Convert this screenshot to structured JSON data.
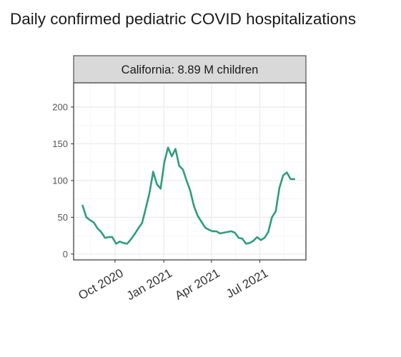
{
  "title": "Daily confirmed pediatric COVID hospitalizations",
  "colors": {
    "line": "#2e9e77",
    "strip_bg": "#d9d9d9",
    "grid": "#ebebeb",
    "border": "#333333"
  },
  "chart_data": {
    "type": "line",
    "title": "Daily confirmed pediatric COVID hospitalizations",
    "facet_label": "California: 8.89 M children",
    "xlabel": "",
    "ylabel": "",
    "ylim": [
      -8,
      233
    ],
    "xlim": [
      "2020-07-15",
      "2021-09-26"
    ],
    "grid": true,
    "y_ticks": [
      0,
      50,
      100,
      150,
      200
    ],
    "x_ticks": [
      {
        "date": "2020-10-01",
        "label": "Oct 2020"
      },
      {
        "date": "2021-01-01",
        "label": "Jan 2021"
      },
      {
        "date": "2021-04-01",
        "label": "Apr 2021"
      },
      {
        "date": "2021-07-01",
        "label": "Jul 2021"
      }
    ],
    "series": [
      {
        "x": [
          "2020-08-01",
          "2020-08-08",
          "2020-08-15",
          "2020-08-22",
          "2020-08-29",
          "2020-09-05",
          "2020-09-12",
          "2020-09-19",
          "2020-09-26",
          "2020-10-03",
          "2020-10-10",
          "2020-10-17",
          "2020-10-24",
          "2020-10-31",
          "2020-11-07",
          "2020-11-14",
          "2020-11-21",
          "2020-11-28",
          "2020-12-05",
          "2020-12-12",
          "2020-12-19",
          "2020-12-26",
          "2021-01-02",
          "2021-01-09",
          "2021-01-16",
          "2021-01-23",
          "2021-01-30",
          "2021-02-06",
          "2021-02-13",
          "2021-02-20",
          "2021-02-27",
          "2021-03-06",
          "2021-03-13",
          "2021-03-20",
          "2021-03-27",
          "2021-04-03",
          "2021-04-10",
          "2021-04-17",
          "2021-04-24",
          "2021-05-01",
          "2021-05-08",
          "2021-05-15",
          "2021-05-22",
          "2021-05-29",
          "2021-06-05",
          "2021-06-12",
          "2021-06-19",
          "2021-06-26",
          "2021-07-03",
          "2021-07-10",
          "2021-07-17",
          "2021-07-24",
          "2021-07-31",
          "2021-08-07",
          "2021-08-14",
          "2021-08-21",
          "2021-08-28",
          "2021-09-04"
        ],
        "y": [
          66,
          50,
          46,
          43,
          35,
          30,
          22,
          23,
          23,
          14,
          17,
          15,
          14,
          20,
          27,
          35,
          42,
          62,
          83,
          112,
          95,
          89,
          125,
          145,
          133,
          143,
          120,
          115,
          100,
          86,
          65,
          52,
          44,
          36,
          33,
          31,
          31,
          28,
          29,
          30,
          31,
          29,
          22,
          21,
          14,
          15,
          18,
          23,
          19,
          22,
          30,
          50,
          58,
          90,
          107,
          111,
          102,
          102
        ]
      }
    ]
  }
}
